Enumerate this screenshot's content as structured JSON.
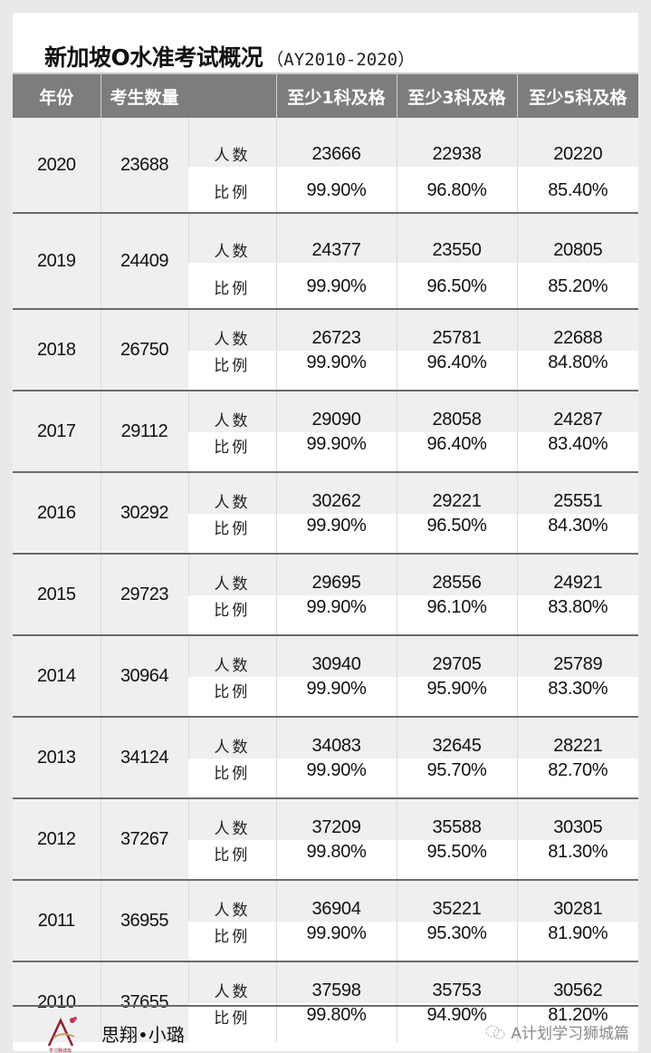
{
  "title": {
    "main": "新加坡O水准考试概况",
    "sub": "（AY2010-2020）"
  },
  "table": {
    "headers": {
      "year": "年份",
      "candidates": "考生数量",
      "pass1": "至少1科及格",
      "pass3": "至少3科及格",
      "pass5": "至少5科及格"
    },
    "row_labels": {
      "count": "人数",
      "ratio": "比例"
    },
    "rows": [
      {
        "year": "2020",
        "candidates": "23688",
        "count": [
          "23666",
          "22938",
          "20220"
        ],
        "ratio": [
          "99.90%",
          "96.80%",
          "85.40%"
        ]
      },
      {
        "year": "2019",
        "candidates": "24409",
        "count": [
          "24377",
          "23550",
          "20805"
        ],
        "ratio": [
          "99.90%",
          "96.50%",
          "85.20%"
        ]
      },
      {
        "year": "2018",
        "candidates": "26750",
        "count": [
          "26723",
          "25781",
          "22688"
        ],
        "ratio": [
          "99.90%",
          "96.40%",
          "84.80%"
        ]
      },
      {
        "year": "2017",
        "candidates": "29112",
        "count": [
          "29090",
          "28058",
          "24287"
        ],
        "ratio": [
          "99.90%",
          "96.40%",
          "83.40%"
        ]
      },
      {
        "year": "2016",
        "candidates": "30292",
        "count": [
          "30262",
          "29221",
          "25551"
        ],
        "ratio": [
          "99.90%",
          "96.50%",
          "84.30%"
        ]
      },
      {
        "year": "2015",
        "candidates": "29723",
        "count": [
          "29695",
          "28556",
          "24921"
        ],
        "ratio": [
          "99.90%",
          "96.10%",
          "83.80%"
        ]
      },
      {
        "year": "2014",
        "candidates": "30964",
        "count": [
          "30940",
          "29705",
          "25789"
        ],
        "ratio": [
          "99.90%",
          "95.90%",
          "83.30%"
        ]
      },
      {
        "year": "2013",
        "candidates": "34124",
        "count": [
          "34083",
          "32645",
          "28221"
        ],
        "ratio": [
          "99.90%",
          "95.70%",
          "82.70%"
        ]
      },
      {
        "year": "2012",
        "candidates": "37267",
        "count": [
          "37209",
          "35588",
          "30305"
        ],
        "ratio": [
          "99.80%",
          "95.50%",
          "81.30%"
        ]
      },
      {
        "year": "2011",
        "candidates": "36955",
        "count": [
          "36904",
          "35221",
          "30281"
        ],
        "ratio": [
          "99.90%",
          "95.30%",
          "81.90%"
        ]
      },
      {
        "year": "2010",
        "candidates": "37655",
        "count": [
          "37598",
          "35753",
          "30562"
        ],
        "ratio": [
          "99.80%",
          "94.90%",
          "81.20%"
        ]
      }
    ]
  },
  "footer": {
    "logo_caption": "学习狮城篇",
    "brand": "思翔•小璐",
    "wechat_account": "A计划学习狮城篇",
    "wechat_icon": "wechat-icon"
  },
  "colors": {
    "header_bg": "#7f7c7d",
    "header_text": "#ffffff",
    "row_shade": "#f0eff0",
    "page_bg": "#e9e9ea"
  }
}
